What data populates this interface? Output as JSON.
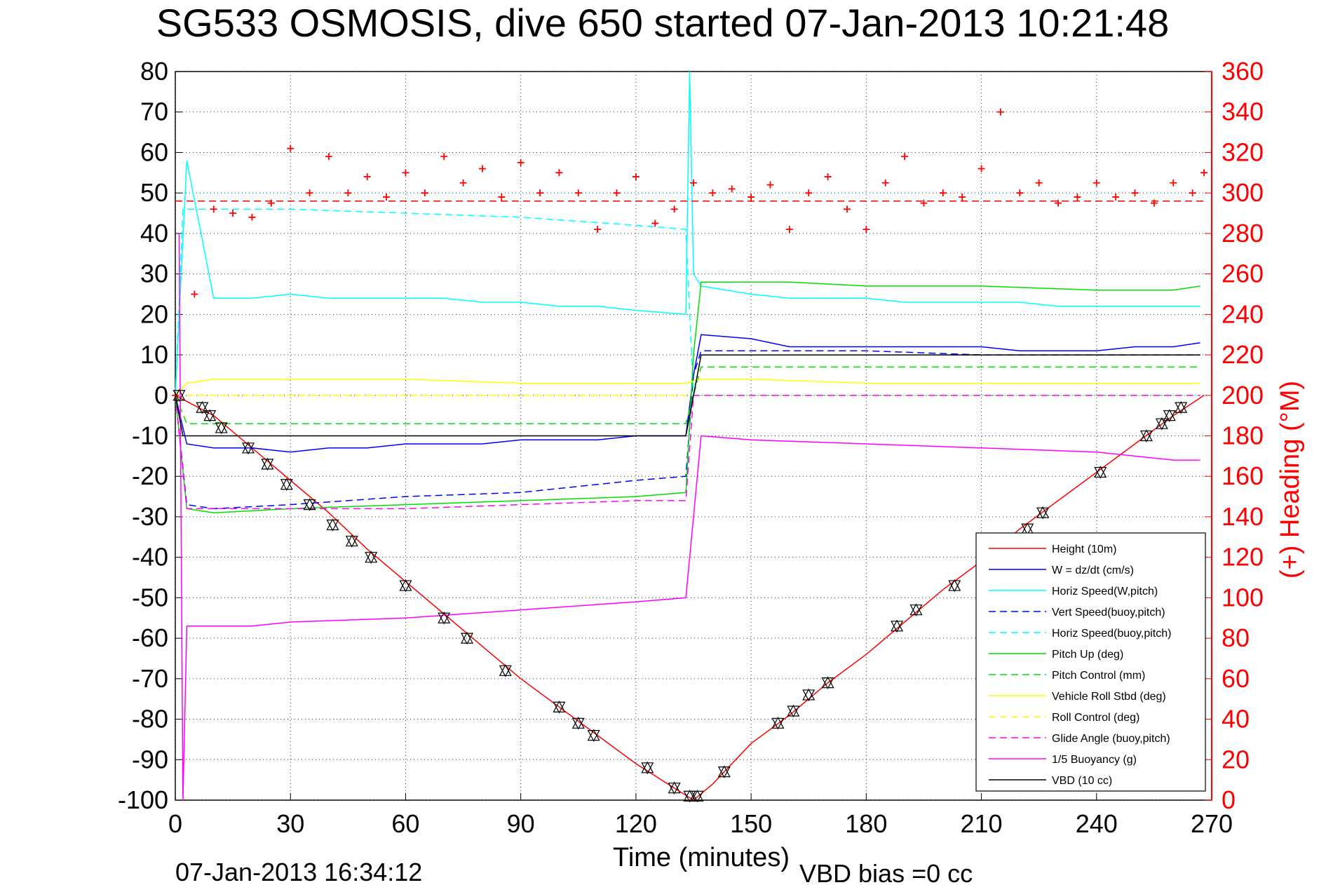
{
  "page": {
    "title": "SG533 OSMOSIS, dive 650 started 07-Jan-2013 10:21:48",
    "timestamp": "07-Jan-2013 16:34:12",
    "vbd_bias": "VBD bias =0 cc"
  },
  "chart_data": {
    "type": "line",
    "title": "SG533 OSMOSIS, dive 650 started 07-Jan-2013 10:21:48",
    "xlabel": "Time (minutes)",
    "ylabel": "",
    "y2label": "(+) Heading (°M)",
    "xlim": [
      0,
      270
    ],
    "ylim": [
      -100,
      80
    ],
    "y2lim": [
      0,
      360
    ],
    "xticks": [
      0,
      30,
      60,
      90,
      120,
      150,
      180,
      210,
      240,
      270
    ],
    "yticks": [
      -100,
      -90,
      -80,
      -70,
      -60,
      -50,
      -40,
      -30,
      -20,
      -10,
      0,
      10,
      20,
      30,
      40,
      50,
      60,
      70,
      80
    ],
    "y2ticks": [
      0,
      20,
      40,
      60,
      80,
      100,
      120,
      140,
      160,
      180,
      200,
      220,
      240,
      260,
      280,
      300,
      320,
      340,
      360
    ],
    "grid": true,
    "legend_position": "bottom-right",
    "series": [
      {
        "name": "Height (10m)",
        "color": "#ff0000",
        "style": "solid",
        "x": [
          0,
          10,
          20,
          30,
          40,
          50,
          60,
          70,
          80,
          90,
          100,
          110,
          120,
          130,
          135,
          140,
          150,
          160,
          170,
          180,
          190,
          200,
          210,
          220,
          230,
          240,
          250,
          260,
          268
        ],
        "y": [
          0,
          -5,
          -13,
          -21,
          -29,
          -38,
          -46,
          -54,
          -62,
          -70,
          -77,
          -84,
          -91,
          -97,
          -100,
          -96,
          -86,
          -79,
          -71,
          -64,
          -56,
          -48,
          -41,
          -33,
          -26,
          -19,
          -12,
          -5,
          0
        ]
      },
      {
        "name": "W = dz/dt (cm/s)",
        "color": "#0000ff",
        "style": "solid",
        "x": [
          0,
          3,
          10,
          20,
          30,
          40,
          50,
          60,
          70,
          80,
          90,
          100,
          110,
          120,
          133,
          135,
          137,
          150,
          160,
          170,
          180,
          190,
          200,
          210,
          220,
          230,
          240,
          250,
          260,
          267
        ],
        "y": [
          0,
          -12,
          -13,
          -13,
          -14,
          -13,
          -13,
          -12,
          -12,
          -12,
          -11,
          -11,
          -11,
          -10,
          -10,
          5,
          15,
          14,
          12,
          12,
          12,
          12,
          12,
          12,
          11,
          11,
          11,
          12,
          12,
          13
        ]
      },
      {
        "name": "Horiz Speed(W,pitch)",
        "color": "#00ffff",
        "style": "solid",
        "x": [
          0,
          3,
          10,
          20,
          30,
          40,
          50,
          60,
          70,
          80,
          90,
          100,
          110,
          120,
          133,
          134,
          135,
          137,
          150,
          160,
          170,
          180,
          190,
          200,
          210,
          220,
          230,
          240,
          250,
          260,
          267
        ],
        "y": [
          0,
          58,
          24,
          24,
          25,
          24,
          24,
          24,
          24,
          23,
          23,
          22,
          22,
          21,
          20,
          80,
          30,
          27,
          25,
          24,
          24,
          24,
          23,
          23,
          23,
          23,
          22,
          22,
          22,
          22,
          22
        ]
      },
      {
        "name": "Vert Speed(buoy,pitch)",
        "color": "#0000ff",
        "style": "dashed",
        "x": [
          0,
          3,
          10,
          30,
          60,
          90,
          100,
          110,
          120,
          133,
          135,
          137,
          150,
          180,
          210,
          240,
          267
        ],
        "y": [
          0,
          -27,
          -28,
          -27,
          -25,
          -24,
          -23,
          -22,
          -21,
          -20,
          5,
          11,
          11,
          11,
          10,
          10,
          10
        ]
      },
      {
        "name": "Horiz Speed(buoy,pitch)",
        "color": "#00ffff",
        "style": "dashed",
        "x": [
          0,
          2,
          10,
          30,
          60,
          90,
          120,
          133,
          135,
          137,
          150,
          180,
          210,
          240,
          267
        ],
        "y": [
          0,
          46,
          46,
          46,
          45,
          44,
          42,
          41,
          0,
          0,
          0,
          0,
          0,
          0,
          0
        ]
      },
      {
        "name": "Pitch Up (deg)",
        "color": "#00dd00",
        "style": "solid",
        "x": [
          0,
          3,
          10,
          30,
          60,
          90,
          120,
          133,
          135,
          137,
          150,
          160,
          180,
          210,
          240,
          260,
          267
        ],
        "y": [
          0,
          -28,
          -29,
          -28,
          -27,
          -26,
          -25,
          -24,
          10,
          28,
          28,
          28,
          27,
          27,
          26,
          26,
          27
        ]
      },
      {
        "name": "Pitch Control (mm)",
        "color": "#00dd00",
        "style": "dashed",
        "x": [
          0,
          3,
          10,
          30,
          60,
          90,
          120,
          133,
          135,
          137,
          150,
          180,
          210,
          240,
          267
        ],
        "y": [
          0,
          -7,
          -7,
          -7,
          -7,
          -7,
          -7,
          -7,
          0,
          7,
          7,
          7,
          7,
          7,
          7
        ]
      },
      {
        "name": "Vehicle Roll Stbd (deg)",
        "color": "#ffff00",
        "style": "solid",
        "x": [
          0,
          3,
          10,
          30,
          60,
          90,
          120,
          133,
          137,
          150,
          180,
          210,
          240,
          267
        ],
        "y": [
          0,
          3,
          4,
          4,
          4,
          3,
          3,
          3,
          4,
          4,
          3,
          3,
          3,
          3
        ]
      },
      {
        "name": "Roll Control (deg)",
        "color": "#ffff00",
        "style": "dashed",
        "x": [
          0,
          3,
          10,
          30,
          60,
          90,
          120,
          133,
          137,
          150,
          180,
          210,
          240,
          267
        ],
        "y": [
          0,
          0,
          0,
          0,
          0,
          0,
          0,
          0,
          0,
          0,
          0,
          0,
          0,
          0
        ]
      },
      {
        "name": "Glide Angle (buoy,pitch)",
        "color": "#ff00ff",
        "style": "dashed",
        "x": [
          0,
          3,
          10,
          30,
          60,
          90,
          120,
          133,
          135,
          137,
          150,
          180,
          210,
          240,
          267
        ],
        "y": [
          0,
          -28,
          -28,
          -28,
          -28,
          -27,
          -26,
          -26,
          0,
          0,
          0,
          0,
          0,
          0,
          0
        ]
      },
      {
        "name": "1/5 Buoyancy (g)",
        "color": "#ff00ff",
        "style": "solid",
        "x": [
          1,
          2,
          3,
          10,
          20,
          30,
          60,
          90,
          120,
          133,
          137,
          150,
          180,
          210,
          240,
          260,
          267
        ],
        "y": [
          40,
          -100,
          -57,
          -57,
          -57,
          -56,
          -55,
          -53,
          -51,
          -50,
          -10,
          -11,
          -12,
          -13,
          -14,
          -16,
          -16
        ]
      },
      {
        "name": "VBD (10 cc)",
        "color": "#000000",
        "style": "solid",
        "x": [
          0,
          2,
          10,
          30,
          60,
          90,
          120,
          133,
          135,
          137,
          150,
          180,
          210,
          240,
          267
        ],
        "y": [
          0,
          -10,
          -10,
          -10,
          -10,
          -10,
          -10,
          -10,
          0,
          10,
          10,
          10,
          10,
          10,
          10
        ]
      },
      {
        "name": "",
        "color": "#ff0000",
        "style": "markers-plus",
        "axis": "right",
        "x": [
          0,
          5,
          10,
          15,
          20,
          25,
          30,
          35,
          40,
          45,
          50,
          55,
          60,
          65,
          70,
          75,
          80,
          85,
          90,
          95,
          100,
          105,
          110,
          115,
          120,
          125,
          130,
          135,
          140,
          145,
          150,
          155,
          160,
          165,
          170,
          175,
          180,
          185,
          190,
          195,
          200,
          205,
          210,
          215,
          220,
          225,
          230,
          235,
          240,
          245,
          250,
          255,
          260,
          265,
          268
        ],
        "y": [
          200,
          250,
          292,
          290,
          288,
          295,
          322,
          300,
          318,
          300,
          308,
          298,
          310,
          300,
          318,
          305,
          312,
          298,
          315,
          300,
          310,
          300,
          282,
          300,
          308,
          285,
          292,
          305,
          300,
          302,
          298,
          304,
          282,
          300,
          308,
          292,
          282,
          305,
          318,
          295,
          300,
          298,
          312,
          340,
          300,
          305,
          295,
          298,
          305,
          298,
          300,
          295,
          305,
          300,
          310
        ]
      },
      {
        "name": "",
        "color": "#ff0000",
        "style": "dashed",
        "axis": "right",
        "x": [
          0,
          268
        ],
        "y": [
          296,
          296
        ]
      },
      {
        "name": "",
        "color": "#000000",
        "style": "markers-triangle",
        "x": [
          1,
          7,
          9,
          12,
          19,
          24,
          29,
          35,
          41,
          46,
          51,
          60,
          70,
          76,
          86,
          100,
          105,
          109,
          123,
          130,
          134,
          136,
          143,
          157,
          161,
          165,
          170,
          188,
          193,
          203,
          222,
          226,
          241,
          253,
          257,
          259,
          262
        ],
        "y": [
          0,
          -3,
          -5,
          -8,
          -13,
          -17,
          -22,
          -27,
          -32,
          -36,
          -40,
          -47,
          -55,
          -60,
          -68,
          -77,
          -81,
          -84,
          -92,
          -97,
          -99,
          -99,
          -93,
          -81,
          -78,
          -74,
          -71,
          -57,
          -53,
          -47,
          -33,
          -29,
          -19,
          -10,
          -7,
          -5,
          -3
        ]
      }
    ],
    "legend": [
      "Height (10m)",
      "W = dz/dt (cm/s)",
      "Horiz Speed(W,pitch)",
      "Vert Speed(buoy,pitch)",
      "Horiz Speed(buoy,pitch)",
      "Pitch Up (deg)",
      "Pitch Control (mm)",
      "Vehicle Roll Stbd (deg)",
      "Roll Control (deg)",
      "Glide Angle (buoy,pitch)",
      "1/5 Buoyancy (g)",
      "VBD (10 cc)"
    ]
  }
}
